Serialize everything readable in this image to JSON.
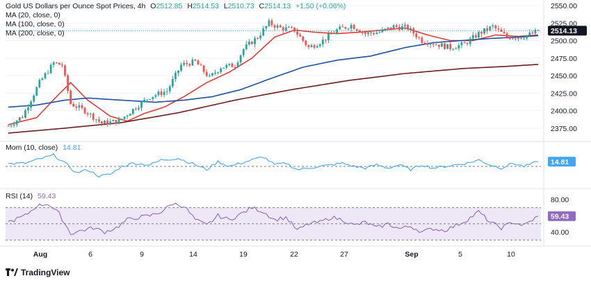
{
  "header": {
    "title": "Gold US Dollars per Ounce Spot Prices, 4h",
    "ohlc": {
      "o_label": "O",
      "o": "2512.85",
      "h_label": "H",
      "h": "2514.53",
      "l_label": "L",
      "l": "2510.73",
      "c_label": "C",
      "c": "2514.13",
      "change": "+1.50 (+0.06%)"
    },
    "ma_lines": [
      "MA (20, close, 0)",
      "MA (100, close, 0)",
      "MA (200, close, 0)"
    ]
  },
  "momentum_label": "Mom (10, close)",
  "momentum_value": "14.81",
  "rsi_label": "RSI (14)",
  "rsi_value": "59.43",
  "price_badge": "2514.13",
  "mom_badge": "14.81",
  "rsi_badge": "59.43",
  "brand": "TradingView",
  "colors": {
    "up": "#26a69a",
    "down": "#ef5350",
    "ma20": "#e53935",
    "ma100": "#1e4fa3",
    "ma200": "#6d1c1c",
    "mom": "#42a5f5",
    "rsi": "#8e6bbf",
    "rsi_band": "#ede7f6"
  },
  "chart_data": [
    {
      "type": "candlestick",
      "panel": "price",
      "y_ticks": [
        "2550.00",
        "2525.00",
        "2500.00",
        "2475.00",
        "2450.00",
        "2425.00",
        "2400.00",
        "2375.00"
      ],
      "ylim": [
        2360,
        2550
      ],
      "x_ticks": [
        "Aug",
        "6",
        "9",
        "14",
        "19",
        "22",
        "27",
        "Sep",
        "5",
        "10"
      ],
      "anchors": [
        [
          0,
          2378
        ],
        [
          5,
          2392
        ],
        [
          11,
          2440
        ],
        [
          16,
          2468
        ],
        [
          19,
          2465
        ],
        [
          22,
          2410
        ],
        [
          27,
          2400
        ],
        [
          33,
          2382
        ],
        [
          39,
          2385
        ],
        [
          45,
          2405
        ],
        [
          50,
          2420
        ],
        [
          56,
          2428
        ],
        [
          61,
          2465
        ],
        [
          66,
          2470
        ],
        [
          71,
          2447
        ],
        [
          75,
          2462
        ],
        [
          80,
          2465
        ],
        [
          83,
          2488
        ],
        [
          88,
          2505
        ],
        [
          92,
          2525
        ],
        [
          96,
          2518
        ],
        [
          101,
          2515
        ],
        [
          106,
          2490
        ],
        [
          111,
          2500
        ],
        [
          116,
          2515
        ],
        [
          121,
          2522
        ],
        [
          126,
          2510
        ],
        [
          131,
          2512
        ],
        [
          136,
          2520
        ],
        [
          141,
          2518
        ],
        [
          146,
          2500
        ],
        [
          151,
          2495
        ],
        [
          156,
          2490
        ],
        [
          161,
          2495
        ],
        [
          166,
          2510
        ],
        [
          171,
          2520
        ],
        [
          176,
          2505
        ],
        [
          181,
          2505
        ],
        [
          185,
          2510
        ],
        [
          187,
          2514
        ]
      ],
      "series": [
        {
          "name": "MA (20, close, 0)",
          "color": "#e53935",
          "anchors": [
            [
              0,
              2380
            ],
            [
              10,
              2390
            ],
            [
              17,
              2420
            ],
            [
              22,
              2440
            ],
            [
              28,
              2415
            ],
            [
              36,
              2392
            ],
            [
              42,
              2385
            ],
            [
              48,
              2396
            ],
            [
              55,
              2405
            ],
            [
              62,
              2420
            ],
            [
              70,
              2440
            ],
            [
              78,
              2455
            ],
            [
              86,
              2475
            ],
            [
              94,
              2505
            ],
            [
              101,
              2515
            ],
            [
              108,
              2512
            ],
            [
              116,
              2510
            ],
            [
              124,
              2512
            ],
            [
              132,
              2515
            ],
            [
              140,
              2518
            ],
            [
              148,
              2508
            ],
            [
              156,
              2500
            ],
            [
              164,
              2500
            ],
            [
              172,
              2508
            ],
            [
              180,
              2506
            ],
            [
              187,
              2508
            ]
          ]
        },
        {
          "name": "MA (100, close, 0)",
          "color": "#1e4fa3",
          "anchors": [
            [
              0,
              2405
            ],
            [
              10,
              2408
            ],
            [
              20,
              2415
            ],
            [
              28,
              2418
            ],
            [
              40,
              2415
            ],
            [
              52,
              2412
            ],
            [
              62,
              2415
            ],
            [
              72,
              2420
            ],
            [
              82,
              2430
            ],
            [
              92,
              2445
            ],
            [
              104,
              2462
            ],
            [
              116,
              2472
            ],
            [
              128,
              2478
            ],
            [
              140,
              2490
            ],
            [
              150,
              2497
            ],
            [
              160,
              2500
            ],
            [
              170,
              2503
            ],
            [
              180,
              2505
            ],
            [
              187,
              2507
            ]
          ]
        },
        {
          "name": "MA (200, close, 0)",
          "color": "#6d1c1c",
          "anchors": [
            [
              0,
              2368
            ],
            [
              20,
              2375
            ],
            [
              40,
              2383
            ],
            [
              60,
              2397
            ],
            [
              80,
              2415
            ],
            [
              100,
              2430
            ],
            [
              120,
              2443
            ],
            [
              140,
              2453
            ],
            [
              160,
              2460
            ],
            [
              175,
              2463
            ],
            [
              187,
              2466
            ]
          ]
        }
      ]
    },
    {
      "type": "line",
      "panel": "momentum",
      "series": [
        {
          "name": "Mom (10, close)",
          "color": "#42a5f5"
        }
      ],
      "ylim": [
        -60,
        60
      ],
      "zero_line": 0,
      "anchors": [
        [
          0,
          8
        ],
        [
          6,
          10
        ],
        [
          12,
          25
        ],
        [
          16,
          35
        ],
        [
          20,
          10
        ],
        [
          24,
          -20
        ],
        [
          28,
          -10
        ],
        [
          32,
          -30
        ],
        [
          36,
          -25
        ],
        [
          40,
          0
        ],
        [
          44,
          10
        ],
        [
          50,
          5
        ],
        [
          54,
          20
        ],
        [
          60,
          25
        ],
        [
          66,
          5
        ],
        [
          70,
          -10
        ],
        [
          74,
          15
        ],
        [
          78,
          0
        ],
        [
          82,
          10
        ],
        [
          86,
          20
        ],
        [
          90,
          30
        ],
        [
          94,
          5
        ],
        [
          98,
          10
        ],
        [
          102,
          -10
        ],
        [
          106,
          -5
        ],
        [
          110,
          0
        ],
        [
          114,
          5
        ],
        [
          118,
          10
        ],
        [
          122,
          0
        ],
        [
          126,
          -5
        ],
        [
          130,
          5
        ],
        [
          134,
          -5
        ],
        [
          138,
          5
        ],
        [
          142,
          -10
        ],
        [
          146,
          5
        ],
        [
          150,
          -5
        ],
        [
          154,
          0
        ],
        [
          158,
          5
        ],
        [
          162,
          10
        ],
        [
          166,
          20
        ],
        [
          170,
          5
        ],
        [
          174,
          -5
        ],
        [
          178,
          10
        ],
        [
          182,
          0
        ],
        [
          187,
          14.81
        ]
      ]
    },
    {
      "type": "line",
      "panel": "rsi",
      "series": [
        {
          "name": "RSI (14)",
          "color": "#8e6bbf"
        }
      ],
      "ylim": [
        25,
        90
      ],
      "y_ticks": [
        "80.00",
        "40.00"
      ],
      "band": [
        30,
        70
      ],
      "mid": 50,
      "anchors": [
        [
          0,
          52
        ],
        [
          6,
          60
        ],
        [
          10,
          72
        ],
        [
          14,
          75
        ],
        [
          18,
          62
        ],
        [
          22,
          38
        ],
        [
          26,
          42
        ],
        [
          30,
          45
        ],
        [
          34,
          40
        ],
        [
          38,
          45
        ],
        [
          42,
          55
        ],
        [
          46,
          58
        ],
        [
          50,
          60
        ],
        [
          54,
          65
        ],
        [
          58,
          75
        ],
        [
          62,
          72
        ],
        [
          66,
          55
        ],
        [
          70,
          48
        ],
        [
          74,
          60
        ],
        [
          78,
          55
        ],
        [
          82,
          62
        ],
        [
          86,
          70
        ],
        [
          90,
          65
        ],
        [
          94,
          55
        ],
        [
          98,
          58
        ],
        [
          102,
          42
        ],
        [
          106,
          50
        ],
        [
          110,
          52
        ],
        [
          114,
          58
        ],
        [
          118,
          55
        ],
        [
          122,
          48
        ],
        [
          126,
          52
        ],
        [
          130,
          45
        ],
        [
          134,
          50
        ],
        [
          138,
          44
        ],
        [
          142,
          47
        ],
        [
          146,
          40
        ],
        [
          150,
          44
        ],
        [
          154,
          42
        ],
        [
          158,
          48
        ],
        [
          162,
          55
        ],
        [
          166,
          65
        ],
        [
          170,
          52
        ],
        [
          174,
          45
        ],
        [
          178,
          52
        ],
        [
          182,
          48
        ],
        [
          187,
          59.43
        ]
      ]
    }
  ]
}
